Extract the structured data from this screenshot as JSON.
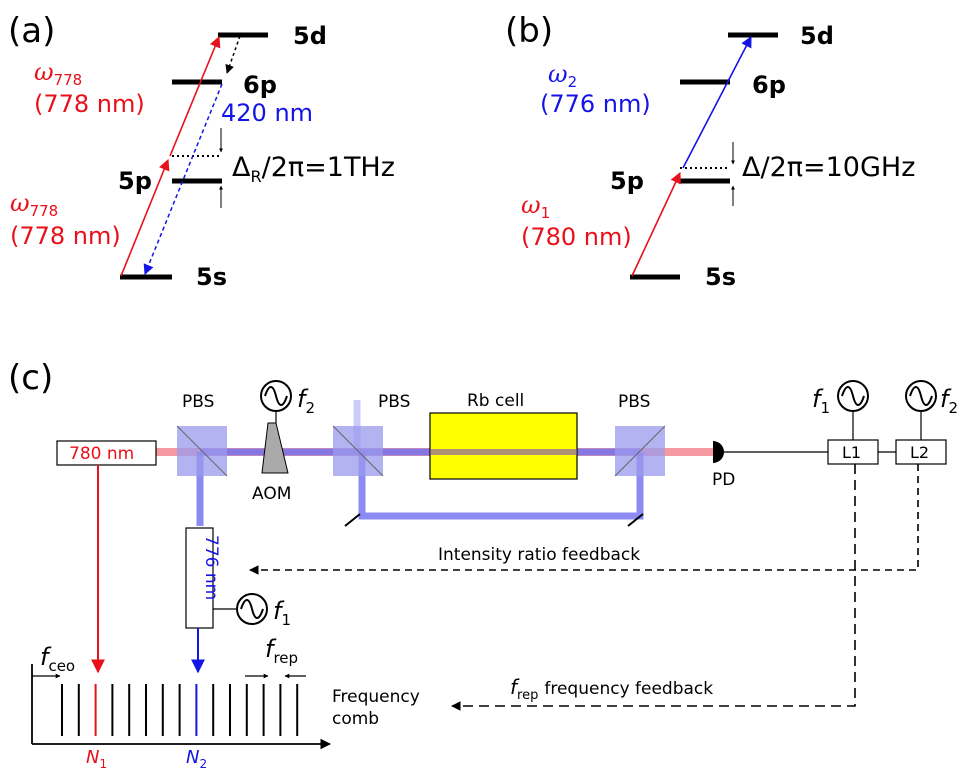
{
  "colors": {
    "red": "#e8101a",
    "blue": "#1414e6",
    "beam_red": "#f59aa0",
    "beam_blue": "#6e6ef0",
    "cube": "#9999ee",
    "cell": "#ffff00",
    "black": "#000000",
    "grey": "#aaaaaa"
  },
  "panel_a": {
    "label": "(a)",
    "levels": {
      "5d": "5d",
      "6p": "6p",
      "5p": "5p",
      "5s": "5s"
    },
    "omega_upper": "778",
    "wl_upper": "(778 nm)",
    "omega_lower": "778",
    "wl_lower": "(778 nm)",
    "emission": "420 nm",
    "detuning_sub": "R",
    "detuning_rest": "/2π=1THz"
  },
  "panel_b": {
    "label": "(b)",
    "levels": {
      "5d": "5d",
      "6p": "6p",
      "5p": "5p",
      "5s": "5s"
    },
    "omega_upper": "2",
    "wl_upper": "(776 nm)",
    "omega_lower": "1",
    "wl_lower": "(780 nm)",
    "detuning": "Δ/2π=10GHz"
  },
  "panel_c": {
    "label": "(c)",
    "laser_780": "780 nm",
    "laser_776": "776 nm",
    "pbs": "PBS",
    "aom": "AOM",
    "rb_cell": "Rb cell",
    "pd": "PD",
    "lockin_1": "L1",
    "lockin_2": "L2",
    "f2_sub": "2",
    "f1_sub": "1",
    "intensity_feedback": "Intensity ratio feedback",
    "freq_feedback": "frequency feedback",
    "frep_sub": "rep",
    "fceo_sub": "ceo",
    "comb_line1": "Frequency",
    "comb_line2": "comb",
    "n1_sub": "1",
    "n2_sub": "2"
  }
}
